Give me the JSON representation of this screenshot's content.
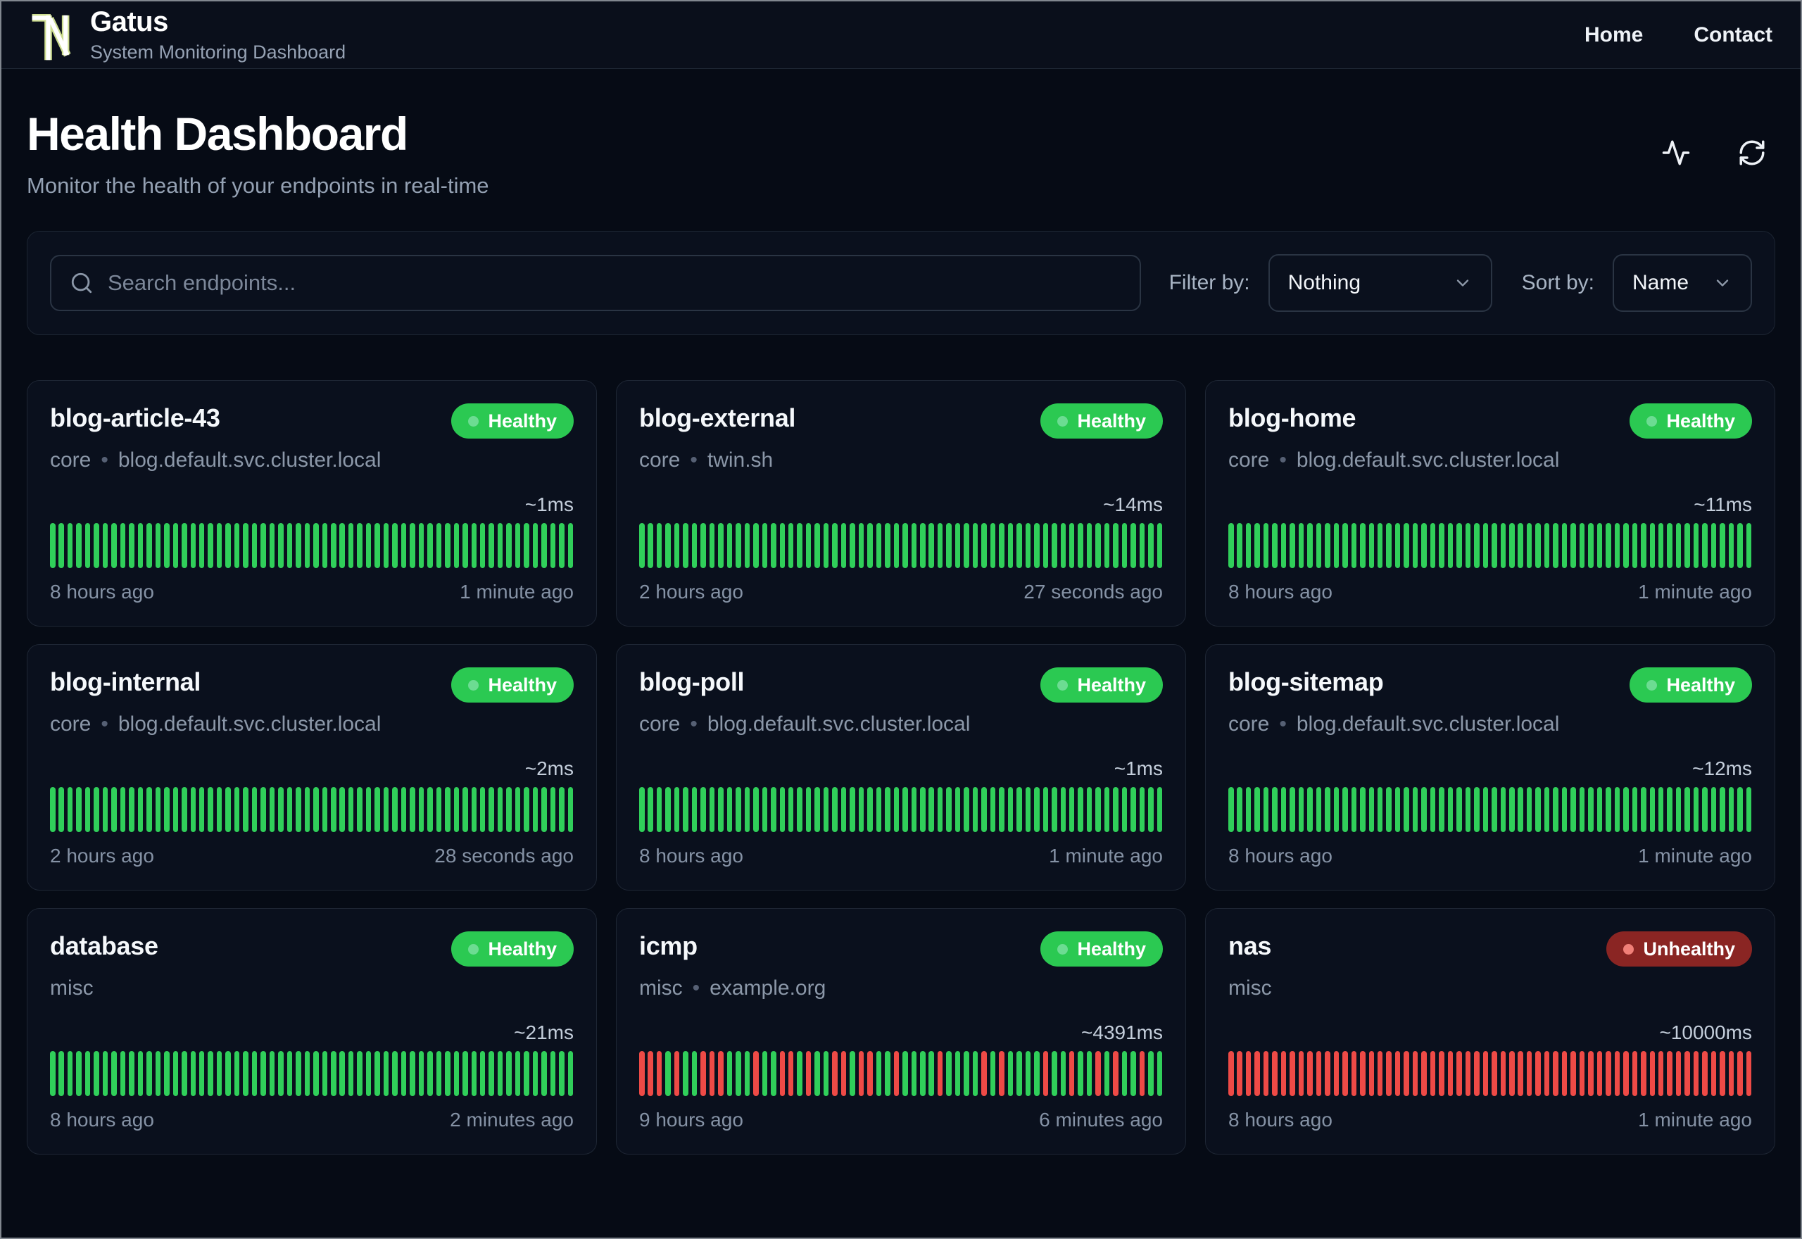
{
  "header": {
    "brand": "Gatus",
    "subtitle": "System Monitoring Dashboard",
    "nav": [
      {
        "label": "Home"
      },
      {
        "label": "Contact"
      }
    ]
  },
  "hero": {
    "title": "Health Dashboard",
    "subtitle": "Monitor the health of your endpoints in real-time",
    "icons": [
      "activity-icon",
      "refresh-icon"
    ]
  },
  "toolbar": {
    "search_placeholder": "Search endpoints...",
    "filter_label": "Filter by:",
    "filter_value": "Nothing",
    "sort_label": "Sort by:",
    "sort_value": "Name"
  },
  "colors": {
    "page_bg": "#060b15",
    "card_bg": "#0a101d",
    "healthy_badge": "#2bc952",
    "unhealthy_badge": "#8a2523",
    "bar_up": "#30cf5a",
    "bar_down": "#ee4a46",
    "muted_text": "#8b97a8"
  },
  "status_legend": {
    "up": "G",
    "down": "R"
  },
  "cards": [
    {
      "name": "blog-article-43",
      "group": "core",
      "host": "blog.default.svc.cluster.local",
      "status": "Healthy",
      "latency": "~1ms",
      "from": "8 hours ago",
      "to": "1 minute ago",
      "bars": "GGGGGGGGGGGGGGGGGGGGGGGGGGGGGGGGGGGGGGGGGGGGGGGGGGGGGGGGGGGG"
    },
    {
      "name": "blog-external",
      "group": "core",
      "host": "twin.sh",
      "status": "Healthy",
      "latency": "~14ms",
      "from": "2 hours ago",
      "to": "27 seconds ago",
      "bars": "GGGGGGGGGGGGGGGGGGGGGGGGGGGGGGGGGGGGGGGGGGGGGGGGGGGGGGGGGGGG"
    },
    {
      "name": "blog-home",
      "group": "core",
      "host": "blog.default.svc.cluster.local",
      "status": "Healthy",
      "latency": "~11ms",
      "from": "8 hours ago",
      "to": "1 minute ago",
      "bars": "GGGGGGGGGGGGGGGGGGGGGGGGGGGGGGGGGGGGGGGGGGGGGGGGGGGGGGGGGGGG"
    },
    {
      "name": "blog-internal",
      "group": "core",
      "host": "blog.default.svc.cluster.local",
      "status": "Healthy",
      "latency": "~2ms",
      "from": "2 hours ago",
      "to": "28 seconds ago",
      "bars": "GGGGGGGGGGGGGGGGGGGGGGGGGGGGGGGGGGGGGGGGGGGGGGGGGGGGGGGGGGGG"
    },
    {
      "name": "blog-poll",
      "group": "core",
      "host": "blog.default.svc.cluster.local",
      "status": "Healthy",
      "latency": "~1ms",
      "from": "8 hours ago",
      "to": "1 minute ago",
      "bars": "GGGGGGGGGGGGGGGGGGGGGGGGGGGGGGGGGGGGGGGGGGGGGGGGGGGGGGGGGGGG"
    },
    {
      "name": "blog-sitemap",
      "group": "core",
      "host": "blog.default.svc.cluster.local",
      "status": "Healthy",
      "latency": "~12ms",
      "from": "8 hours ago",
      "to": "1 minute ago",
      "bars": "GGGGGGGGGGGGGGGGGGGGGGGGGGGGGGGGGGGGGGGGGGGGGGGGGGGGGGGGGGGG"
    },
    {
      "name": "database",
      "group": "misc",
      "host": "",
      "status": "Healthy",
      "latency": "~21ms",
      "from": "8 hours ago",
      "to": "2 minutes ago",
      "bars": "GGGGGGGGGGGGGGGGGGGGGGGGGGGGGGGGGGGGGGGGGGGGGGGGGGGGGGGGGGGG"
    },
    {
      "name": "icmp",
      "group": "misc",
      "host": "example.org",
      "status": "Healthy",
      "latency": "~4391ms",
      "from": "9 hours ago",
      "to": "6 minutes ago",
      "bars": "RRRGRGGRRRGGGRGGRRGRGGRRGRRGGRGGGGRGGGGRGRGGGGRGGRGGRGRGGRGG"
    },
    {
      "name": "nas",
      "group": "misc",
      "host": "",
      "status": "Unhealthy",
      "latency": "~10000ms",
      "from": "8 hours ago",
      "to": "1 minute ago",
      "bars": "RRRRRRRRRRRRRRRRRRRRRRRRRRRRRRRRRRRRRRRRRRRRRRRRRRRRRRRRRRRR"
    }
  ]
}
